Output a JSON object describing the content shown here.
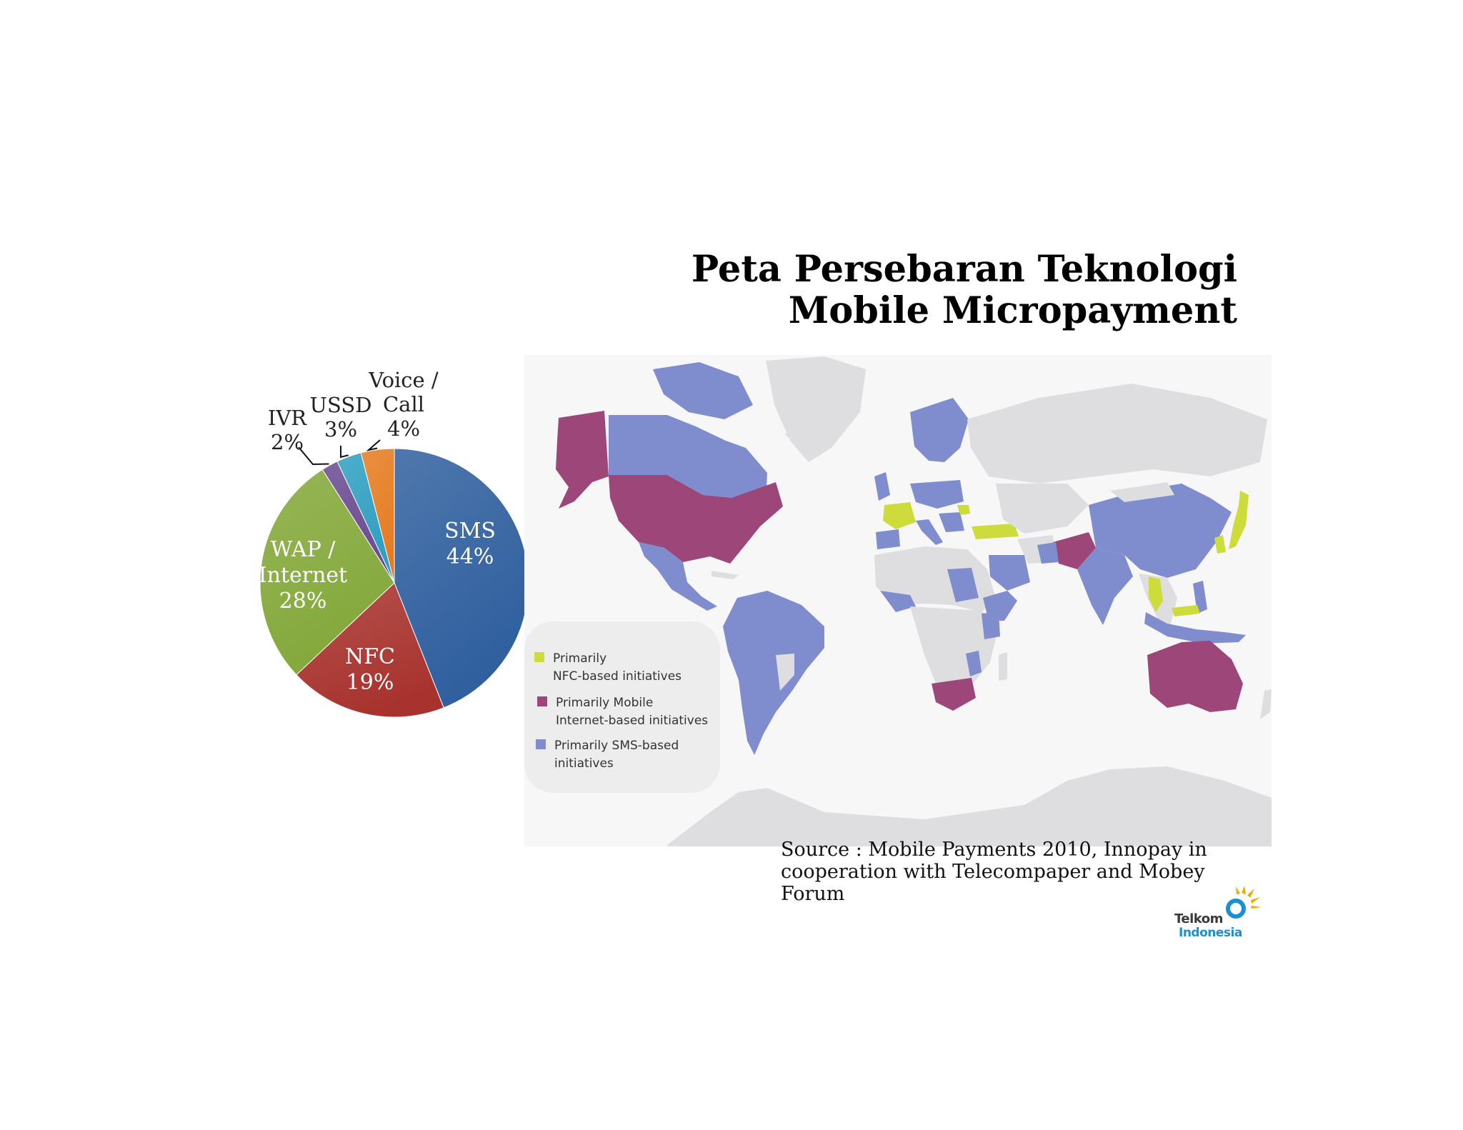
{
  "title": {
    "line1": "Peta Persebaran Teknologi",
    "line2": "Mobile Micropayment"
  },
  "chart_data": {
    "type": "pie",
    "title": "",
    "slices": [
      {
        "key": "sms",
        "name": "SMS",
        "value": 44,
        "label": "44%",
        "color": "#2f5f9e"
      },
      {
        "key": "nfc",
        "name": "NFC",
        "value": 19,
        "label": "19%",
        "color": "#a8332e"
      },
      {
        "key": "wap",
        "name": "WAP / Internet",
        "value": 28,
        "label": "28%",
        "color": "#84a83a"
      },
      {
        "key": "ivr",
        "name": "IVR",
        "value": 2,
        "label": "2%",
        "color": "#6a4a92"
      },
      {
        "key": "ussd",
        "name": "USSD",
        "value": 3,
        "label": "3%",
        "color": "#2f9fc2"
      },
      {
        "key": "voice",
        "name": "Voice / Call",
        "value": 4,
        "label": "4%",
        "color": "#e57c22"
      }
    ],
    "labels": {
      "sms": {
        "name": "SMS",
        "pct": "44%"
      },
      "nfc": {
        "name": "NFC",
        "pct": "19%"
      },
      "wap": {
        "name1": "WAP /",
        "name2": "Internet",
        "pct": "28%"
      },
      "ivr": {
        "name": "IVR",
        "pct": "2%"
      },
      "ussd": {
        "name": "USSD",
        "pct": "3%"
      },
      "voice": {
        "name1": "Voice /",
        "name2": "Call",
        "pct": "4%"
      }
    }
  },
  "map": {
    "colors": {
      "nfc": "#cddc3a",
      "mobile_internet": "#9c4679",
      "sms": "#7f8cce",
      "land": "#dedee0",
      "ocean": "#f7f7f8"
    }
  },
  "legend": {
    "items": [
      {
        "key": "nfc",
        "line1": "Primarily",
        "line2": "NFC-based initiatives",
        "color": "#cddc3a"
      },
      {
        "key": "mobile",
        "line1": "Primarily Mobile",
        "line2": "Internet-based initiatives",
        "color": "#9c4679"
      },
      {
        "key": "sms",
        "line1": "Primarily SMS-based",
        "line2": "initiatives",
        "color": "#7f8cce"
      }
    ]
  },
  "source": {
    "line1": "Source : Mobile Payments 2010, Innopay in",
    "line2": "cooperation with Telecompaper and Mobey Forum"
  },
  "logo": {
    "line1": "Telkom",
    "line2": "Indonesia"
  }
}
